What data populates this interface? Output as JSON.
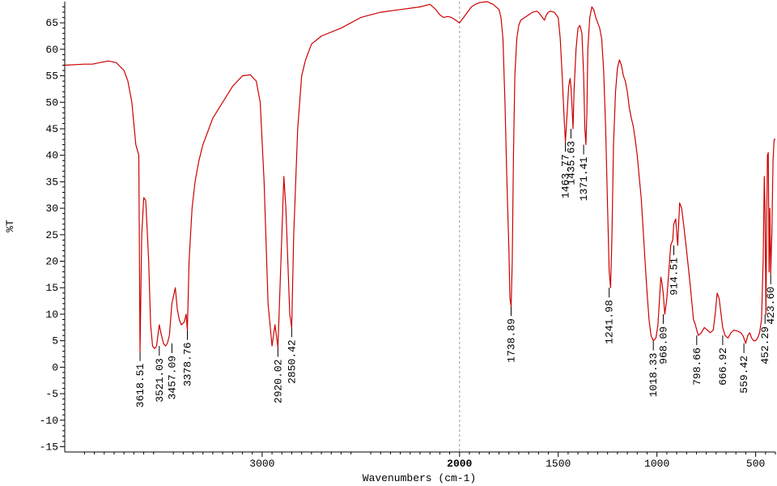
{
  "chart_data": {
    "type": "line",
    "xlabel": "Wavenumbers (cm-1)",
    "ylabel": "%T",
    "xlim": [
      4000,
      400
    ],
    "ylim": [
      -16,
      69
    ],
    "x_ticks": [
      3000,
      2000,
      1500,
      1000,
      500
    ],
    "x_tick_bold": [
      2000
    ],
    "y_ticks": [
      -15,
      -10,
      -5,
      0,
      5,
      10,
      15,
      20,
      25,
      30,
      35,
      40,
      45,
      50,
      55,
      60,
      65
    ],
    "reference_line_x": 2000,
    "line_color": "#cc0000",
    "series": [
      {
        "x": [
          4000,
          3900,
          3860,
          3820,
          3780,
          3740,
          3700,
          3680,
          3660,
          3640,
          3625,
          3618.51,
          3610,
          3600,
          3590,
          3585,
          3575,
          3565,
          3555,
          3545,
          3535,
          3521.03,
          3510,
          3500,
          3490,
          3480,
          3470,
          3457.09,
          3440,
          3430,
          3420,
          3410,
          3395,
          3385,
          3378.76,
          3370,
          3355,
          3340,
          3320,
          3300,
          3280,
          3250,
          3200,
          3150,
          3100,
          3060,
          3030,
          3010,
          2990,
          2970,
          2950,
          2935,
          2920.02,
          2905,
          2890,
          2880,
          2870,
          2860,
          2850.42,
          2840,
          2820,
          2800,
          2780,
          2750,
          2700,
          2600,
          2500,
          2400,
          2300,
          2200,
          2150,
          2120,
          2100,
          2080,
          2060,
          2040,
          2020,
          2000,
          1980,
          1960,
          1940,
          1920,
          1900,
          1860,
          1830,
          1800,
          1790,
          1780,
          1770,
          1760,
          1750,
          1745,
          1738.89,
          1733,
          1727,
          1720,
          1710,
          1700,
          1690,
          1670,
          1650,
          1630,
          1610,
          1600,
          1590,
          1580,
          1570,
          1560,
          1550,
          1540,
          1520,
          1500,
          1490,
          1480,
          1470,
          1463.77,
          1455,
          1447,
          1440,
          1435.63,
          1430,
          1425,
          1420,
          1410,
          1400,
          1390,
          1380,
          1371.41,
          1365,
          1360,
          1355,
          1350,
          1340,
          1330,
          1320,
          1310,
          1300,
          1290,
          1280,
          1270,
          1260,
          1250,
          1241.98,
          1235,
          1228,
          1220,
          1210,
          1200,
          1190,
          1180,
          1170,
          1160,
          1150,
          1140,
          1130,
          1120,
          1110,
          1100,
          1090,
          1080,
          1070,
          1060,
          1050,
          1040,
          1030,
          1018.33,
          1005,
          995,
          985,
          980,
          975,
          968.09,
          960,
          950,
          940,
          930,
          920,
          914.51,
          905,
          895,
          885,
          875,
          865,
          850,
          830,
          815,
          805,
          798.66,
          790,
          775,
          760,
          745,
          730,
          715,
          705,
          695,
          685,
          675,
          666.92,
          655,
          640,
          625,
          610,
          590,
          575,
          565,
          559.42,
          550,
          540,
          530,
          520,
          510,
          500,
          490,
          480,
          470,
          462,
          456,
          452.29,
          448,
          444,
          440,
          436,
          432,
          428,
          423.6,
          418,
          412,
          406,
          400
        ],
        "y": [
          57.0,
          57.2,
          57.2,
          57.5,
          57.8,
          57.5,
          56.0,
          54.0,
          50.0,
          42.0,
          40.0,
          3.0,
          25.0,
          32.0,
          31.5,
          28.0,
          20.0,
          8.0,
          4.0,
          3.5,
          4.0,
          8.0,
          6.0,
          4.5,
          4.0,
          4.5,
          6.0,
          12.0,
          15.0,
          11.0,
          9.0,
          8.0,
          8.5,
          10.0,
          7.0,
          20.0,
          30.0,
          35.0,
          39.0,
          42.0,
          44.0,
          47.0,
          50.0,
          53.0,
          55.0,
          55.2,
          54.0,
          50.0,
          35.0,
          12.0,
          4.0,
          8.0,
          3.8,
          20.0,
          36.0,
          30.0,
          20.0,
          10.0,
          7.5,
          25.0,
          45.0,
          55.0,
          58.0,
          61.0,
          62.5,
          64.0,
          66.0,
          67.0,
          67.5,
          68.0,
          68.5,
          67.5,
          66.5,
          66.0,
          66.2,
          66.0,
          65.5,
          65.0,
          66.0,
          67.0,
          68.0,
          68.5,
          68.8,
          69.0,
          68.5,
          67.5,
          66.0,
          62.0,
          50.0,
          35.0,
          22.0,
          13.0,
          11.5,
          20.0,
          40.0,
          55.0,
          62.0,
          64.5,
          65.5,
          66.0,
          66.5,
          67.0,
          67.2,
          67.0,
          66.5,
          66.0,
          65.5,
          66.5,
          67.0,
          67.2,
          67.0,
          66.0,
          62.0,
          55.0,
          47.0,
          42.5,
          48.0,
          53.0,
          54.5,
          53.0,
          49.0,
          45.0,
          52.0,
          60.0,
          64.0,
          64.5,
          63.0,
          55.0,
          45.0,
          42.0,
          48.0,
          60.0,
          66.0,
          68.0,
          67.5,
          66.0,
          65.0,
          64.0,
          62.0,
          56.0,
          45.0,
          30.0,
          18.0,
          15.0,
          25.0,
          42.0,
          52.0,
          56.5,
          58.0,
          57.0,
          55.0,
          54.0,
          52.0,
          49.0,
          47.0,
          45.5,
          43.0,
          40.0,
          36.0,
          32.0,
          26.0,
          20.0,
          14.0,
          9.0,
          6.0,
          5.0,
          5.5,
          8.0,
          14.0,
          17.0,
          16.0,
          14.0,
          10.0,
          13.0,
          18.0,
          23.0,
          24.0,
          27.0,
          28.0,
          23.0,
          31.0,
          30.0,
          27.0,
          22.0,
          15.0,
          9.0,
          8.0,
          7.0,
          6.0,
          6.5,
          7.5,
          7.0,
          6.5,
          7.0,
          10.0,
          14.0,
          13.0,
          10.0,
          7.5,
          6.0,
          5.5,
          6.5,
          7.0,
          6.8,
          6.5,
          6.0,
          5.5,
          4.5,
          6.0,
          6.5,
          5.5,
          5.0,
          5.0,
          5.5,
          6.5,
          9.0,
          20.0,
          36.0,
          30.0,
          10.0,
          28.0,
          40.0,
          40.5,
          18.0,
          30.0,
          17.5,
          25.0,
          39.0,
          43.0,
          43.0
        ]
      }
    ],
    "peak_labels": [
      {
        "text": "3618.51",
        "x": 3618.51,
        "y": 3.0
      },
      {
        "text": "3521.03",
        "x": 3521.03,
        "y": 4.0
      },
      {
        "text": "3457.09",
        "x": 3457.09,
        "y": 4.5
      },
      {
        "text": "3378.76",
        "x": 3378.76,
        "y": 7.0
      },
      {
        "text": "2920.02",
        "x": 2920.02,
        "y": 3.8
      },
      {
        "text": "2850.42",
        "x": 2850.42,
        "y": 7.5
      },
      {
        "text": "1738.89",
        "x": 1738.89,
        "y": 11.5
      },
      {
        "text": "1463.77",
        "x": 1463.77,
        "y": 42.5
      },
      {
        "text": "1435.63",
        "x": 1435.63,
        "y": 45.0
      },
      {
        "text": "1371.41",
        "x": 1371.41,
        "y": 42.0
      },
      {
        "text": "1241.98",
        "x": 1241.98,
        "y": 15.0
      },
      {
        "text": "1018.33",
        "x": 1018.33,
        "y": 5.0
      },
      {
        "text": "968.09",
        "x": 968.09,
        "y": 10.0
      },
      {
        "text": "914.51",
        "x": 914.51,
        "y": 23.0
      },
      {
        "text": "798.66",
        "x": 798.66,
        "y": 6.0
      },
      {
        "text": "666.92",
        "x": 666.92,
        "y": 6.0
      },
      {
        "text": "559.42",
        "x": 559.42,
        "y": 4.5
      },
      {
        "text": "452.29",
        "x": 452.29,
        "y": 10.0
      },
      {
        "text": "423.60",
        "x": 423.6,
        "y": 17.5
      }
    ]
  }
}
